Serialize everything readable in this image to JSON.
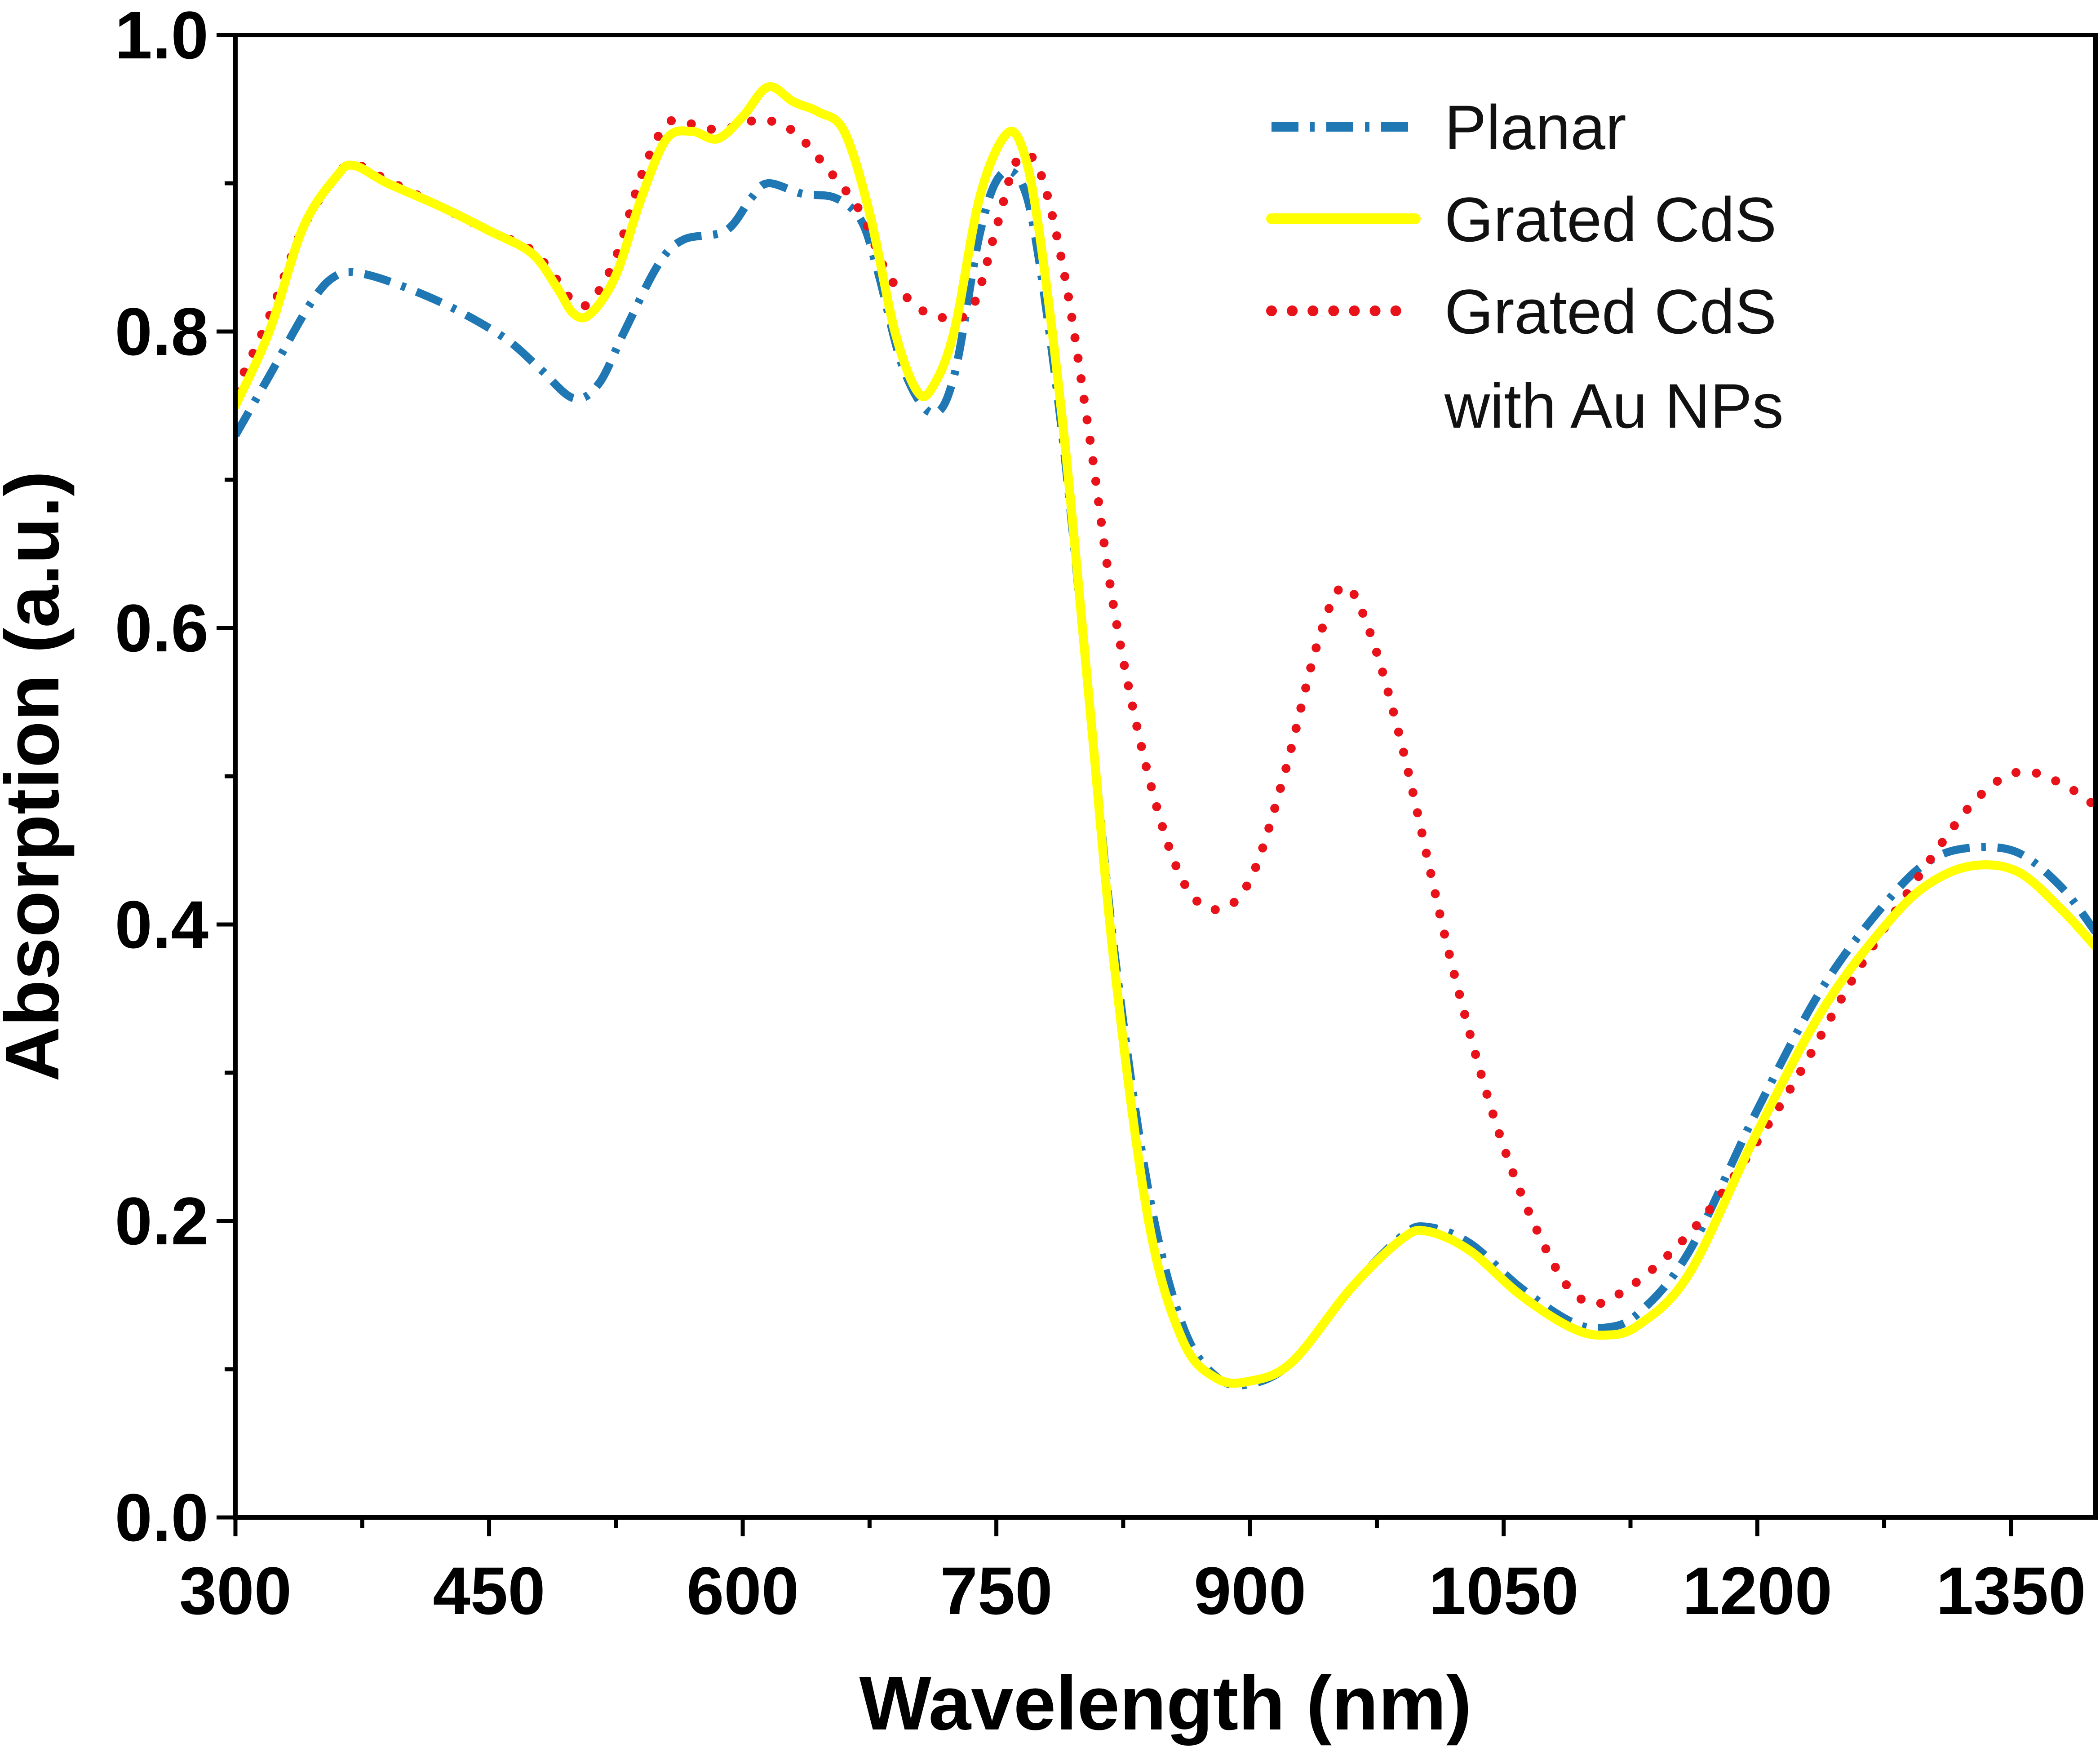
{
  "chart_data": {
    "type": "line",
    "title": "",
    "xlabel": "Wavelength (nm)",
    "ylabel": "Absorption (a.u.)",
    "xlim": [
      300,
      1400
    ],
    "ylim": [
      0.0,
      1.0
    ],
    "x_ticks": [
      300,
      450,
      600,
      750,
      900,
      1050,
      1200,
      1350
    ],
    "x_tick_labels": [
      "300",
      "450",
      "600",
      "750",
      "900",
      "1050",
      "1200",
      "1350"
    ],
    "x_minor_ticks": [
      375,
      525,
      675,
      825,
      975,
      1125,
      1275
    ],
    "y_ticks": [
      0.0,
      0.2,
      0.4,
      0.6,
      0.8,
      1.0
    ],
    "y_tick_labels": [
      "0.0",
      "0.2",
      "0.4",
      "0.6",
      "0.8",
      "1.0"
    ],
    "y_minor_ticks": [
      0.1,
      0.3,
      0.5,
      0.7,
      0.9
    ],
    "grid": false,
    "legend_position": "top-right",
    "series": [
      {
        "name": "Planar",
        "label_lines": [
          "Planar"
        ],
        "color": "#1f77b4",
        "style": "dashdot",
        "points": [
          [
            300,
            0.73
          ],
          [
            320,
            0.77
          ],
          [
            345,
            0.82
          ],
          [
            360,
            0.838
          ],
          [
            375,
            0.839
          ],
          [
            400,
            0.83
          ],
          [
            430,
            0.815
          ],
          [
            460,
            0.795
          ],
          [
            480,
            0.775
          ],
          [
            500,
            0.755
          ],
          [
            515,
            0.765
          ],
          [
            530,
            0.8
          ],
          [
            550,
            0.845
          ],
          [
            565,
            0.862
          ],
          [
            590,
            0.868
          ],
          [
            605,
            0.89
          ],
          [
            615,
            0.9
          ],
          [
            635,
            0.893
          ],
          [
            655,
            0.89
          ],
          [
            670,
            0.875
          ],
          [
            680,
            0.84
          ],
          [
            695,
            0.775
          ],
          [
            712,
            0.745
          ],
          [
            725,
            0.77
          ],
          [
            740,
            0.865
          ],
          [
            752,
            0.905
          ],
          [
            765,
            0.9
          ],
          [
            775,
            0.85
          ],
          [
            790,
            0.72
          ],
          [
            805,
            0.55
          ],
          [
            820,
            0.38
          ],
          [
            840,
            0.22
          ],
          [
            860,
            0.13
          ],
          [
            880,
            0.095
          ],
          [
            900,
            0.09
          ],
          [
            925,
            0.105
          ],
          [
            960,
            0.155
          ],
          [
            990,
            0.19
          ],
          [
            1005,
            0.196
          ],
          [
            1030,
            0.185
          ],
          [
            1060,
            0.155
          ],
          [
            1090,
            0.132
          ],
          [
            1110,
            0.128
          ],
          [
            1130,
            0.138
          ],
          [
            1160,
            0.18
          ],
          [
            1200,
            0.275
          ],
          [
            1240,
            0.36
          ],
          [
            1280,
            0.42
          ],
          [
            1305,
            0.445
          ],
          [
            1330,
            0.452
          ],
          [
            1355,
            0.448
          ],
          [
            1380,
            0.425
          ],
          [
            1400,
            0.395
          ]
        ]
      },
      {
        "name": "Grated CdS",
        "label_lines": [
          "Grated CdS"
        ],
        "color": "#ffff00",
        "style": "solid",
        "points": [
          [
            300,
            0.75
          ],
          [
            320,
            0.8
          ],
          [
            340,
            0.87
          ],
          [
            360,
            0.905
          ],
          [
            370,
            0.912
          ],
          [
            390,
            0.9
          ],
          [
            420,
            0.885
          ],
          [
            450,
            0.868
          ],
          [
            475,
            0.853
          ],
          [
            490,
            0.83
          ],
          [
            500,
            0.812
          ],
          [
            510,
            0.812
          ],
          [
            525,
            0.838
          ],
          [
            540,
            0.89
          ],
          [
            555,
            0.93
          ],
          [
            570,
            0.935
          ],
          [
            585,
            0.93
          ],
          [
            600,
            0.945
          ],
          [
            615,
            0.965
          ],
          [
            630,
            0.955
          ],
          [
            645,
            0.948
          ],
          [
            660,
            0.935
          ],
          [
            675,
            0.88
          ],
          [
            690,
            0.8
          ],
          [
            703,
            0.76
          ],
          [
            712,
            0.762
          ],
          [
            725,
            0.8
          ],
          [
            740,
            0.89
          ],
          [
            755,
            0.932
          ],
          [
            765,
            0.925
          ],
          [
            775,
            0.87
          ],
          [
            790,
            0.73
          ],
          [
            805,
            0.55
          ],
          [
            820,
            0.37
          ],
          [
            840,
            0.2
          ],
          [
            860,
            0.12
          ],
          [
            880,
            0.094
          ],
          [
            900,
            0.092
          ],
          [
            925,
            0.105
          ],
          [
            960,
            0.155
          ],
          [
            990,
            0.188
          ],
          [
            1005,
            0.193
          ],
          [
            1030,
            0.18
          ],
          [
            1060,
            0.15
          ],
          [
            1090,
            0.128
          ],
          [
            1110,
            0.123
          ],
          [
            1130,
            0.13
          ],
          [
            1160,
            0.165
          ],
          [
            1200,
            0.26
          ],
          [
            1240,
            0.345
          ],
          [
            1280,
            0.405
          ],
          [
            1305,
            0.43
          ],
          [
            1330,
            0.44
          ],
          [
            1355,
            0.435
          ],
          [
            1380,
            0.41
          ],
          [
            1400,
            0.385
          ]
        ]
      },
      {
        "name": "Grated CdS with Au NPs",
        "label_lines": [
          "Grated CdS",
          "with Au NPs"
        ],
        "color": "#e8131a",
        "style": "dotted",
        "points": [
          [
            300,
            0.76
          ],
          [
            320,
            0.81
          ],
          [
            340,
            0.87
          ],
          [
            360,
            0.905
          ],
          [
            370,
            0.913
          ],
          [
            390,
            0.902
          ],
          [
            420,
            0.885
          ],
          [
            450,
            0.868
          ],
          [
            475,
            0.855
          ],
          [
            490,
            0.835
          ],
          [
            500,
            0.82
          ],
          [
            510,
            0.82
          ],
          [
            525,
            0.85
          ],
          [
            540,
            0.905
          ],
          [
            555,
            0.94
          ],
          [
            570,
            0.94
          ],
          [
            585,
            0.936
          ],
          [
            600,
            0.94
          ],
          [
            612,
            0.943
          ],
          [
            630,
            0.935
          ],
          [
            650,
            0.91
          ],
          [
            670,
            0.88
          ],
          [
            685,
            0.84
          ],
          [
            700,
            0.82
          ],
          [
            715,
            0.81
          ],
          [
            735,
            0.815
          ],
          [
            750,
            0.87
          ],
          [
            762,
            0.915
          ],
          [
            775,
            0.91
          ],
          [
            790,
            0.84
          ],
          [
            805,
            0.73
          ],
          [
            820,
            0.61
          ],
          [
            840,
            0.5
          ],
          [
            860,
            0.43
          ],
          [
            880,
            0.41
          ],
          [
            900,
            0.43
          ],
          [
            920,
            0.5
          ],
          [
            940,
            0.59
          ],
          [
            955,
            0.628
          ],
          [
            970,
            0.6
          ],
          [
            990,
            0.52
          ],
          [
            1020,
            0.37
          ],
          [
            1050,
            0.25
          ],
          [
            1080,
            0.17
          ],
          [
            1100,
            0.145
          ],
          [
            1120,
            0.152
          ],
          [
            1150,
            0.18
          ],
          [
            1180,
            0.22
          ],
          [
            1220,
            0.29
          ],
          [
            1260,
            0.37
          ],
          [
            1300,
            0.44
          ],
          [
            1330,
            0.485
          ],
          [
            1355,
            0.503
          ],
          [
            1380,
            0.495
          ],
          [
            1400,
            0.48
          ]
        ]
      }
    ]
  }
}
